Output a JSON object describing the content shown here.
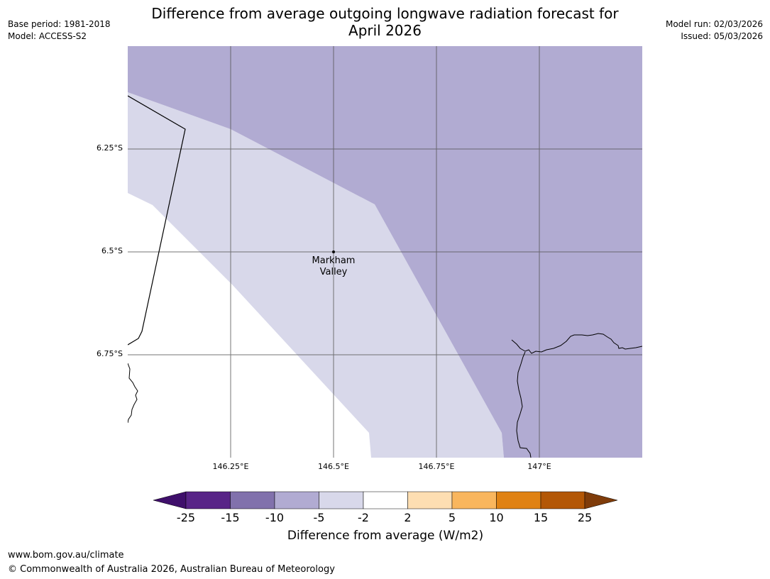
{
  "header": {
    "title_line1": "Difference from average outgoing longwave radiation forecast for",
    "title_line2": "April 2026",
    "base_period": "Base period: 1981-2018",
    "model": "Model: ACCESS-S2",
    "model_run": "Model run: 02/03/2026",
    "issued": "Issued: 05/03/2026"
  },
  "map": {
    "lat_labels": [
      "6.25°S",
      "6.5°S",
      "6.75°S"
    ],
    "lon_labels": [
      "146.25°E",
      "146.5°E",
      "146.75°E",
      "147°E"
    ],
    "place": {
      "line1": "Markham",
      "line2": "Valley"
    },
    "colors": {
      "band_-10_-5": "#b1abd2",
      "band_-5_-2": "#d8d8ea",
      "band_-2_2": "#ffffff"
    }
  },
  "colorbar": {
    "label": "Difference from average (W/m2)",
    "ticks": [
      "-25",
      "-15",
      "-10",
      "-5",
      "-2",
      "2",
      "5",
      "10",
      "15",
      "25"
    ],
    "colors": [
      "#3f0f6b",
      "#582487",
      "#8171ac",
      "#b1abd2",
      "#d8d8ea",
      "#ffffff",
      "#fddeb2",
      "#f9b65d",
      "#e08213",
      "#b35706",
      "#7f3c0a"
    ]
  },
  "footer": {
    "url": "www.bom.gov.au/climate",
    "copyright": "© Commonwealth of Australia 2026, Australian Bureau of Meteorology"
  }
}
